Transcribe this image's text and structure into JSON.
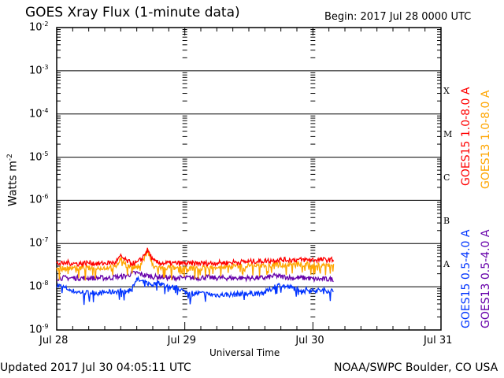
{
  "chart_data": {
    "type": "line",
    "title": "GOES Xray Flux (1-minute data)",
    "begin_label": "Begin:  2017 Jul 28 0000 UTC",
    "xlabel": "Universal Time",
    "ylabel": "Watts m",
    "ylabel_sup": "-2",
    "x_ticks": [
      "Jul 28",
      "Jul 29",
      "Jul 30",
      "Jul 31"
    ],
    "xlim_hours": [
      0,
      72
    ],
    "ylim": [
      1e-09,
      0.01
    ],
    "y_scale": "log",
    "y_ticks": [
      {
        "base": "10",
        "exp": "-9"
      },
      {
        "base": "10",
        "exp": "-8"
      },
      {
        "base": "10",
        "exp": "-7"
      },
      {
        "base": "10",
        "exp": "-6"
      },
      {
        "base": "10",
        "exp": "-5"
      },
      {
        "base": "10",
        "exp": "-4"
      },
      {
        "base": "10",
        "exp": "-3"
      },
      {
        "base": "10",
        "exp": "-2"
      }
    ],
    "flare_classes": [
      "A",
      "B",
      "C",
      "M",
      "X"
    ],
    "x_hours_step": 1,
    "value_unit": "1e-8 W m^-2",
    "series": [
      {
        "name": "GOES15 1.0-8.0 A",
        "color": "#ff0000",
        "values": [
          3.5,
          3.4,
          3.6,
          3.5,
          3.4,
          3.5,
          3.6,
          3.5,
          3.4,
          3.5,
          3.6,
          3.6,
          5.0,
          4.0,
          3.5,
          3.5,
          4.5,
          7.0,
          4.0,
          3.6,
          3.5,
          3.5,
          3.5,
          3.5,
          3.5,
          3.4,
          3.5,
          3.5,
          3.5,
          3.5,
          3.6,
          3.6,
          3.6,
          3.7,
          3.7,
          3.8,
          3.8,
          3.9,
          3.9,
          4.0,
          4.0,
          4.2,
          4.2,
          4.2,
          4.2,
          4.2,
          4.2,
          4.2,
          4.2,
          4.2,
          4.2,
          4.2,
          4.2
        ]
      },
      {
        "name": "GOES13 1.0-8.0 A",
        "color": "#ffa500",
        "values": [
          2.8,
          2.6,
          2.7,
          2.9,
          2.6,
          2.8,
          2.7,
          2.6,
          2.8,
          2.7,
          2.9,
          2.8,
          4.5,
          3.2,
          2.8,
          2.7,
          3.8,
          6.5,
          3.0,
          2.8,
          2.7,
          2.8,
          2.7,
          2.8,
          2.7,
          2.6,
          2.8,
          2.7,
          2.8,
          2.8,
          2.9,
          2.9,
          2.9,
          3.0,
          3.0,
          3.0,
          3.1,
          3.1,
          3.1,
          3.2,
          3.2,
          3.3,
          3.3,
          3.3,
          3.3,
          3.3,
          3.3,
          3.3,
          3.3,
          3.3,
          3.3,
          3.3,
          3.3
        ]
      },
      {
        "name": "GOES13 0.5-4.0 A",
        "color": "#6600aa",
        "values": [
          1.6,
          1.6,
          1.6,
          1.6,
          1.6,
          1.6,
          1.6,
          1.6,
          1.6,
          1.6,
          1.6,
          1.7,
          1.7,
          1.8,
          2.0,
          2.1,
          1.9,
          1.8,
          1.7,
          1.7,
          1.7,
          1.6,
          1.6,
          1.6,
          1.6,
          1.6,
          1.6,
          1.6,
          1.7,
          1.6,
          1.6,
          1.6,
          1.6,
          1.6,
          1.6,
          1.6,
          1.6,
          1.6,
          1.6,
          1.6,
          1.7,
          1.8,
          1.7,
          1.7,
          1.6,
          1.6,
          1.6,
          1.6,
          1.5,
          1.5,
          1.5,
          1.5,
          1.5
        ]
      },
      {
        "name": "GOES15 0.5-4.0 A",
        "color": "#0033ff",
        "values": [
          1.1,
          1.0,
          0.9,
          0.8,
          0.75,
          0.75,
          0.72,
          0.75,
          0.7,
          0.75,
          0.75,
          0.78,
          0.8,
          0.75,
          0.9,
          1.5,
          1.3,
          1.2,
          1.1,
          1.3,
          1.1,
          1.0,
          0.95,
          0.9,
          0.75,
          0.72,
          0.7,
          0.7,
          0.68,
          0.66,
          0.65,
          0.65,
          0.66,
          0.66,
          0.68,
          0.7,
          0.7,
          0.7,
          0.72,
          0.75,
          0.85,
          1.05,
          1.1,
          1.0,
          0.95,
          0.9,
          0.85,
          0.85,
          0.85,
          0.82,
          0.82,
          0.82,
          0.8
        ]
      }
    ]
  },
  "footer": {
    "updated": "Updated 2017 Jul 30 04:05:11 UTC",
    "credit": "NOAA/SWPC Boulder, CO USA"
  }
}
